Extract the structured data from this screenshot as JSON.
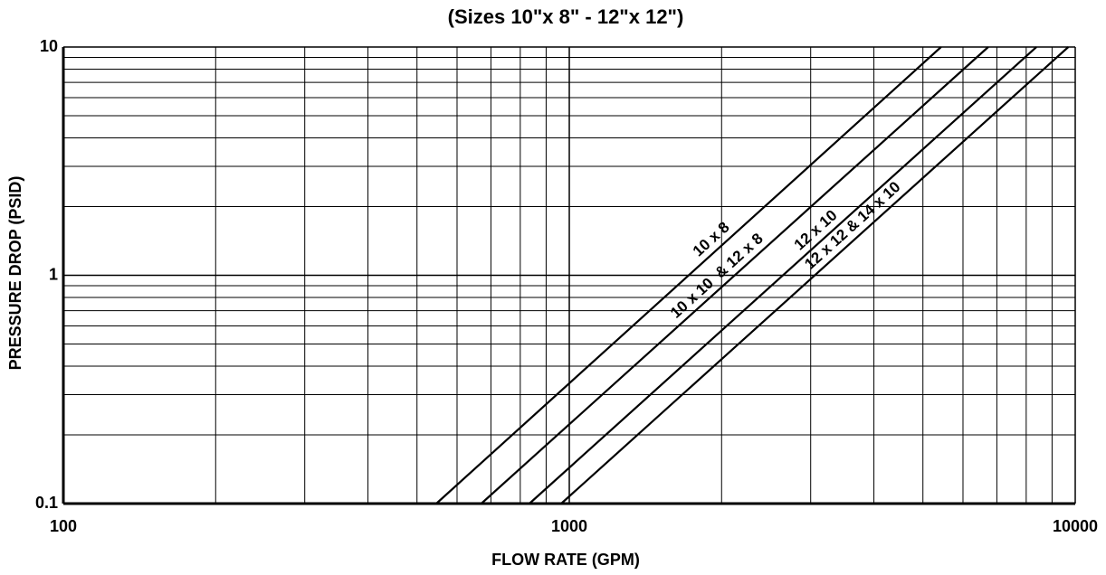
{
  "chart_data": {
    "type": "line",
    "title": "(Sizes 10\"x 8\" - 12\"x 12\")",
    "xlabel": "FLOW RATE (GPM)",
    "ylabel": "PRESSURE DROP (PSID)",
    "xscale": "log",
    "yscale": "log",
    "xlim": [
      100,
      10000
    ],
    "ylim": [
      0.1,
      10
    ],
    "xticks": [
      100,
      1000,
      10000
    ],
    "yticks": [
      0.1,
      1,
      10
    ],
    "xgrid": [
      200,
      300,
      400,
      500,
      600,
      700,
      800,
      900,
      2000,
      3000,
      4000,
      5000,
      6000,
      7000,
      8000,
      9000
    ],
    "ygrid": [
      0.2,
      0.3,
      0.4,
      0.5,
      0.6,
      0.7,
      0.8,
      0.9,
      2,
      3,
      4,
      5,
      6,
      7,
      8,
      9
    ],
    "color": "#000000",
    "series": [
      {
        "name": "10 x 8",
        "x": [
          546,
          5430
        ],
        "values": [
          0.1,
          10
        ]
      },
      {
        "name": "10 x 10  & 12 x 8",
        "x": [
          670,
          6730
        ],
        "values": [
          0.1,
          10
        ]
      },
      {
        "name": "12 x 10",
        "x": [
          834,
          8380
        ],
        "values": [
          0.1,
          10
        ]
      },
      {
        "name": "12 x 12 & 14 x 10",
        "x": [
          964,
          9690
        ],
        "values": [
          0.1,
          10
        ]
      }
    ]
  }
}
